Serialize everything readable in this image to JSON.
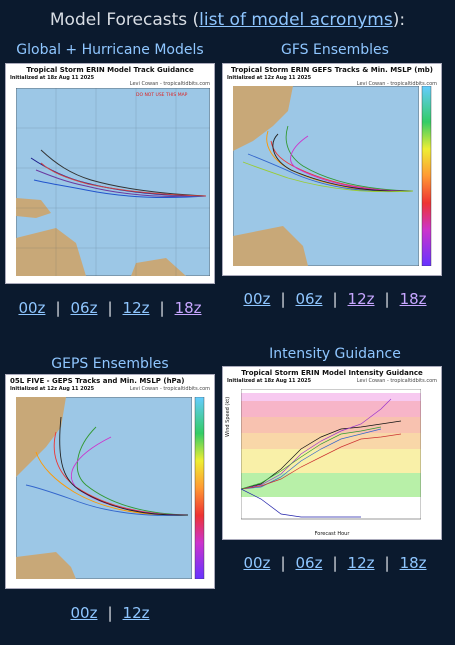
{
  "header": {
    "prefix": "Model Forecasts (",
    "link": "list of model acronyms",
    "suffix": "):"
  },
  "sections": {
    "global": {
      "title": "Global + Hurricane Models",
      "img_title": "Tropical Storm ERIN Model Track Guidance",
      "img_sub": "Initialized at 18z Aug 11 2025",
      "img_credit": "Levi Cowan - tropicaltidbits.com",
      "links": [
        "00z",
        "06z",
        "12z",
        "18z"
      ]
    },
    "gfs": {
      "title": "GFS Ensembles",
      "img_title": "Tropical Storm ERIN GEFS Tracks & Min. MSLP (mb)",
      "img_sub": "Initialized at 12z Aug 11 2025",
      "img_credit": "Levi Cowan - tropicaltidbits.com",
      "links": [
        "00z",
        "06z",
        "12z",
        "18z"
      ]
    },
    "geps": {
      "title": "GEPS Ensembles",
      "img_title": "05L FIVE - GEPS Tracks and Min. MSLP (hPa)",
      "img_sub": "Initialized at 12z Aug 11 2025",
      "img_credit": "Levi Cowan - tropicaltidbits.com",
      "links": [
        "00z",
        "12z"
      ]
    },
    "intensity": {
      "title": "Intensity Guidance",
      "img_title": "Tropical Storm ERIN Model Intensity Guidance",
      "img_sub": "Initialized at 18z Aug 11 2025",
      "img_credit": "Levi Cowan - tropicaltidbits.com",
      "ylabel": "Wind Speed (kt)",
      "xlabel": "Forecast Hour",
      "links": [
        "00z",
        "06z",
        "12z",
        "18z"
      ]
    }
  },
  "colors": {
    "background": "#0b1a2e",
    "link": "#8fc6ff",
    "visited": "#c7a6ff",
    "ocean": "#9cc7e6",
    "land": "#c8a878"
  }
}
